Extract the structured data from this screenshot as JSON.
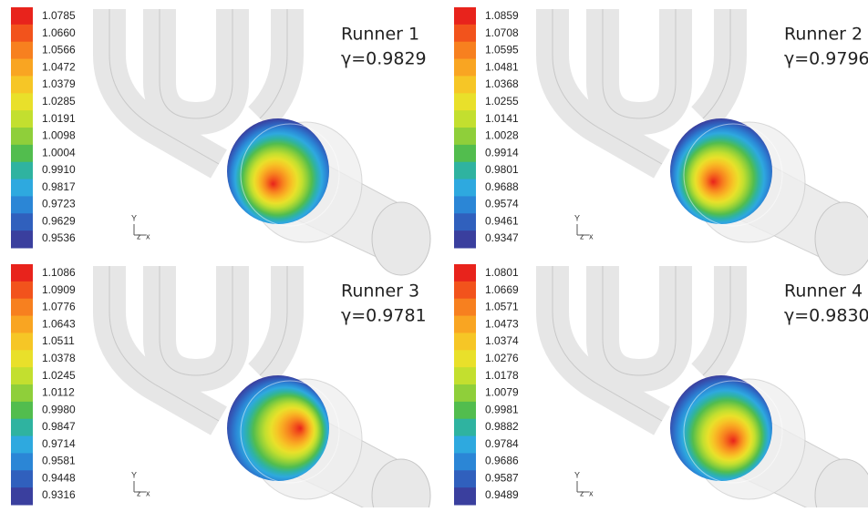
{
  "panels": [
    {
      "title": "Runner 1",
      "gamma": "γ=0.9829",
      "axis_labels": [
        "Y",
        "z",
        "x"
      ],
      "colorbar": [
        "1.0785",
        "1.0660",
        "1.0566",
        "1.0472",
        "1.0379",
        "1.0285",
        "1.0191",
        "1.0098",
        "1.0004",
        "0.9910",
        "0.9817",
        "0.9723",
        "0.9629",
        "0.9536"
      ]
    },
    {
      "title": "Runner 2",
      "gamma": "γ=0.9796",
      "axis_labels": [
        "Y",
        "z",
        "x"
      ],
      "colorbar": [
        "1.0859",
        "1.0708",
        "1.0595",
        "1.0481",
        "1.0368",
        "1.0255",
        "1.0141",
        "1.0028",
        "0.9914",
        "0.9801",
        "0.9688",
        "0.9574",
        "0.9461",
        "0.9347"
      ]
    },
    {
      "title": "Runner 3",
      "gamma": "γ=0.9781",
      "axis_labels": [
        "Y",
        "z",
        "x"
      ],
      "colorbar": [
        "1.1086",
        "1.0909",
        "1.0776",
        "1.0643",
        "1.0511",
        "1.0378",
        "1.0245",
        "1.0112",
        "0.9980",
        "0.9847",
        "0.9714",
        "0.9581",
        "0.9448",
        "0.9316"
      ]
    },
    {
      "title": "Runner 4",
      "gamma": "γ=0.9830",
      "axis_labels": [
        "Y",
        "z",
        "x"
      ],
      "colorbar": [
        "1.0801",
        "1.0669",
        "1.0571",
        "1.0473",
        "1.0374",
        "1.0276",
        "1.0178",
        "1.0079",
        "0.9981",
        "0.9882",
        "0.9784",
        "0.9686",
        "0.9587",
        "0.9489"
      ]
    }
  ]
}
